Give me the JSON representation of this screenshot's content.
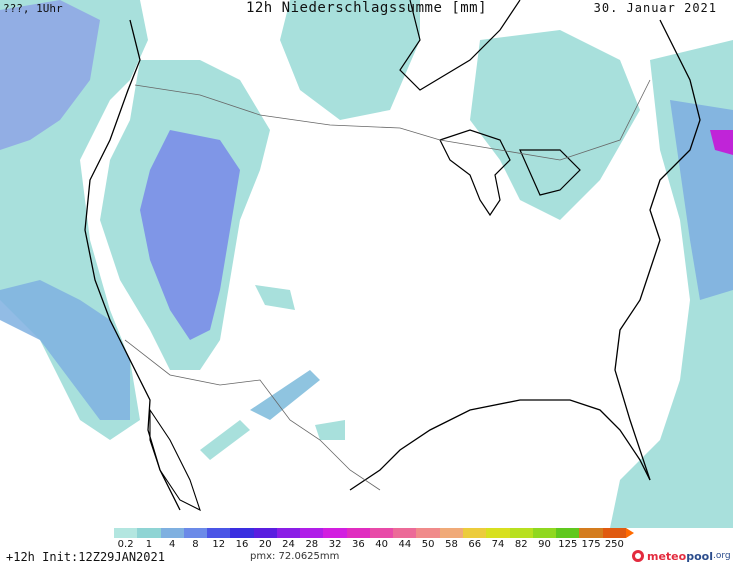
{
  "header": {
    "location_time": "???, 1Uhr",
    "title": "12h Niederschlagssumme [mm]",
    "date": "30. Januar 2021"
  },
  "legend": {
    "labels": [
      "0.2",
      "1",
      "4",
      "8",
      "12",
      "16",
      "20",
      "24",
      "28",
      "32",
      "36",
      "40",
      "44",
      "50",
      "58",
      "66",
      "74",
      "82",
      "90",
      "125",
      "175",
      "250"
    ],
    "colors": [
      "#b3e6e0",
      "#8fd4d4",
      "#7fb0e0",
      "#6b8ae8",
      "#4a55e6",
      "#3a2ee0",
      "#5a1ee0",
      "#8a1ee6",
      "#b01ee8",
      "#d21ee0",
      "#e02cc0",
      "#e84aa8",
      "#ec6a98",
      "#f08a8a",
      "#f0aa78",
      "#eccc3c",
      "#d8e020",
      "#b8e020",
      "#90d820",
      "#60c81e",
      "#d47c1e",
      "#e05a10"
    ]
  },
  "footer": {
    "forecast_hours": "+12h",
    "init": "Init:12Z29JAN2021",
    "pmx": "pmx: 72.0625mm"
  },
  "logo": {
    "meteo": "meteo",
    "pool": "pool",
    "org": ".org"
  },
  "colors": {
    "light_precip": "#a8e0dc",
    "medium_precip": "#7fb0e0",
    "heavy_precip": "#6b78e8",
    "max_precip": "#c024d8",
    "coastline": "#000000",
    "border": "#555555"
  }
}
